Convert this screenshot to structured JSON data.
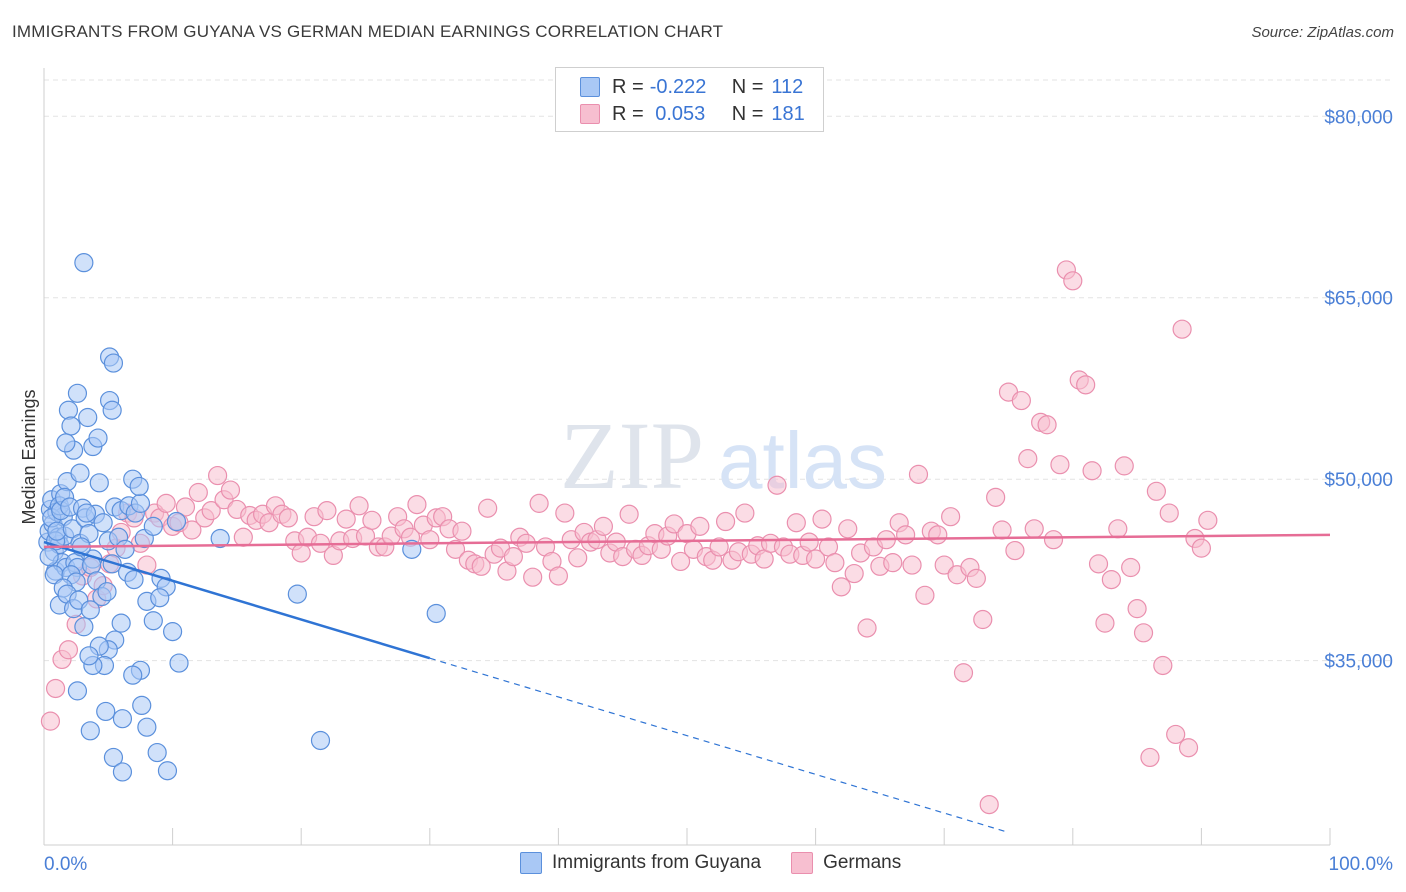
{
  "header": {
    "title": "IMMIGRANTS FROM GUYANA VS GERMAN MEDIAN EARNINGS CORRELATION CHART",
    "source": "Source: ZipAtlas.com"
  },
  "legend": {
    "rows": [
      {
        "r_label": "R =",
        "r_value": "-0.222",
        "n_label": "N =",
        "n_value": "112"
      },
      {
        "r_label": "R =",
        "r_value": " 0.053",
        "n_label": "N =",
        "n_value": "181"
      }
    ]
  },
  "watermark": {
    "zip": "ZIP",
    "atlas": "atlas"
  },
  "colors": {
    "blue_fill": "#a9c8f5",
    "blue_stroke": "#5b90dc",
    "blue_line": "#2f74d4",
    "pink_fill": "#f7bfd0",
    "pink_stroke": "#ea8fae",
    "pink_line": "#e66d96",
    "accent_text": "#4a7fd6"
  },
  "chart_data": {
    "type": "scatter",
    "title": "IMMIGRANTS FROM GUYANA VS GERMAN MEDIAN EARNINGS CORRELATION CHART",
    "xlabel": "",
    "ylabel": "Median Earnings",
    "xlim": [
      0,
      100
    ],
    "ylim": [
      21000,
      83000
    ],
    "x_tick_labels": [
      "0.0%",
      "100.0%"
    ],
    "y_ticks": [
      {
        "value": 35000,
        "label": "$35,000"
      },
      {
        "value": 50000,
        "label": "$50,000"
      },
      {
        "value": 65000,
        "label": "$65,000"
      },
      {
        "value": 80000,
        "label": "$80,000"
      }
    ],
    "series": [
      {
        "name": "Immigrants from Guyana",
        "r": -0.222,
        "n": 112,
        "trend": {
          "x0": 0,
          "y0": 44800,
          "x1": 30,
          "y1": 35200,
          "dash_to_x": 75
        },
        "points": [
          [
            0.3,
            44800
          ],
          [
            0.4,
            45700
          ],
          [
            0.5,
            47500
          ],
          [
            0.6,
            48300
          ],
          [
            0.7,
            46300
          ],
          [
            0.8,
            44000
          ],
          [
            0.9,
            42400
          ],
          [
            1.0,
            47300
          ],
          [
            1.1,
            45200
          ],
          [
            1.2,
            44600
          ],
          [
            1.3,
            48800
          ],
          [
            1.4,
            43100
          ],
          [
            1.5,
            46900
          ],
          [
            1.6,
            45300
          ],
          [
            1.7,
            42700
          ],
          [
            1.8,
            49800
          ],
          [
            0.6,
            46800
          ],
          [
            0.9,
            44900
          ],
          [
            1.2,
            47800
          ],
          [
            0.4,
            43600
          ],
          [
            0.8,
            42100
          ],
          [
            1.0,
            45700
          ],
          [
            1.3,
            47400
          ],
          [
            1.6,
            48500
          ],
          [
            2.0,
            47700
          ],
          [
            2.2,
            45900
          ],
          [
            2.4,
            43100
          ],
          [
            2.6,
            42700
          ],
          [
            2.8,
            44700
          ],
          [
            3.0,
            47600
          ],
          [
            3.2,
            46800
          ],
          [
            3.5,
            45500
          ],
          [
            3.8,
            43400
          ],
          [
            4.0,
            47100
          ],
          [
            4.3,
            49700
          ],
          [
            4.6,
            46400
          ],
          [
            5.0,
            44900
          ],
          [
            2.1,
            42100
          ],
          [
            2.5,
            41500
          ],
          [
            2.9,
            44400
          ],
          [
            3.3,
            47200
          ],
          [
            3.7,
            42900
          ],
          [
            4.1,
            41600
          ],
          [
            4.5,
            40300
          ],
          [
            4.9,
            40700
          ],
          [
            5.3,
            43000
          ],
          [
            1.2,
            39600
          ],
          [
            1.5,
            41000
          ],
          [
            1.8,
            40500
          ],
          [
            2.3,
            39300
          ],
          [
            2.7,
            40000
          ],
          [
            3.1,
            37800
          ],
          [
            3.6,
            39200
          ],
          [
            1.9,
            55700
          ],
          [
            2.1,
            54400
          ],
          [
            2.3,
            52400
          ],
          [
            2.6,
            57100
          ],
          [
            2.8,
            50500
          ],
          [
            3.4,
            55100
          ],
          [
            3.8,
            52700
          ],
          [
            4.2,
            53400
          ],
          [
            1.7,
            53000
          ],
          [
            5.1,
            56500
          ],
          [
            5.3,
            55700
          ],
          [
            5.5,
            47700
          ],
          [
            6.0,
            47400
          ],
          [
            6.6,
            47800
          ],
          [
            7.1,
            47200
          ],
          [
            7.5,
            48000
          ],
          [
            5.8,
            45200
          ],
          [
            6.3,
            44200
          ],
          [
            6.9,
            50000
          ],
          [
            7.4,
            49400
          ],
          [
            7.8,
            45100
          ],
          [
            8.5,
            46100
          ],
          [
            6.5,
            42300
          ],
          [
            7.0,
            41700
          ],
          [
            8.0,
            39900
          ],
          [
            8.5,
            38300
          ],
          [
            9.1,
            41800
          ],
          [
            9.5,
            41100
          ],
          [
            10.0,
            37400
          ],
          [
            10.5,
            34800
          ],
          [
            7.5,
            34200
          ],
          [
            8.0,
            29500
          ],
          [
            9.0,
            40200
          ],
          [
            6.0,
            38100
          ],
          [
            5.5,
            36700
          ],
          [
            5.0,
            35900
          ],
          [
            4.7,
            34600
          ],
          [
            4.3,
            36200
          ],
          [
            3.8,
            34600
          ],
          [
            3.5,
            35400
          ],
          [
            2.6,
            32500
          ],
          [
            6.9,
            33800
          ],
          [
            7.6,
            31300
          ],
          [
            4.8,
            30800
          ],
          [
            6.1,
            30200
          ],
          [
            3.6,
            29200
          ],
          [
            5.4,
            27000
          ],
          [
            6.1,
            25800
          ],
          [
            8.8,
            27400
          ],
          [
            9.6,
            25900
          ],
          [
            3.1,
            67900
          ],
          [
            5.1,
            60100
          ],
          [
            5.4,
            59600
          ],
          [
            10.3,
            46500
          ],
          [
            13.7,
            45100
          ],
          [
            19.7,
            40500
          ],
          [
            21.5,
            28400
          ],
          [
            30.5,
            38900
          ],
          [
            28.6,
            44200
          ]
        ]
      },
      {
        "name": "Germans",
        "r": 0.053,
        "n": 181,
        "trend": {
          "x0": 0,
          "y0": 44400,
          "x1": 100,
          "y1": 45400
        },
        "points": [
          [
            0.5,
            30000
          ],
          [
            0.9,
            32700
          ],
          [
            1.4,
            35100
          ],
          [
            1.9,
            35900
          ],
          [
            2.5,
            38000
          ],
          [
            3.0,
            42000
          ],
          [
            3.6,
            42700
          ],
          [
            4.1,
            40100
          ],
          [
            4.6,
            41200
          ],
          [
            5.1,
            43000
          ],
          [
            5.6,
            44300
          ],
          [
            6.0,
            45600
          ],
          [
            6.5,
            47200
          ],
          [
            7.0,
            46800
          ],
          [
            7.5,
            44700
          ],
          [
            8.0,
            42900
          ],
          [
            8.6,
            47200
          ],
          [
            9.0,
            46800
          ],
          [
            9.5,
            48000
          ],
          [
            10.0,
            46100
          ],
          [
            10.5,
            46400
          ],
          [
            11.0,
            47700
          ],
          [
            11.5,
            45800
          ],
          [
            12.0,
            48900
          ],
          [
            12.5,
            46800
          ],
          [
            13.0,
            47400
          ],
          [
            13.5,
            50300
          ],
          [
            14.0,
            48300
          ],
          [
            14.5,
            49100
          ],
          [
            15.0,
            47500
          ],
          [
            15.5,
            45200
          ],
          [
            16.0,
            47000
          ],
          [
            16.5,
            46600
          ],
          [
            17.0,
            47100
          ],
          [
            17.5,
            46400
          ],
          [
            18.0,
            47800
          ],
          [
            18.5,
            47100
          ],
          [
            19.0,
            46800
          ],
          [
            19.5,
            44900
          ],
          [
            20.0,
            43900
          ],
          [
            20.5,
            45200
          ],
          [
            21.0,
            46900
          ],
          [
            21.5,
            44700
          ],
          [
            22.0,
            47400
          ],
          [
            22.5,
            43700
          ],
          [
            23.0,
            44900
          ],
          [
            23.5,
            46700
          ],
          [
            24.0,
            45100
          ],
          [
            24.5,
            47800
          ],
          [
            25.0,
            45300
          ],
          [
            25.5,
            46600
          ],
          [
            26.0,
            44400
          ],
          [
            26.5,
            44400
          ],
          [
            27.0,
            45300
          ],
          [
            27.5,
            46900
          ],
          [
            28.0,
            45900
          ],
          [
            28.5,
            45200
          ],
          [
            29.0,
            47900
          ],
          [
            29.5,
            46200
          ],
          [
            30.0,
            45000
          ],
          [
            30.5,
            46800
          ],
          [
            31.0,
            46900
          ],
          [
            31.5,
            45900
          ],
          [
            32.0,
            44200
          ],
          [
            32.5,
            45700
          ],
          [
            33.0,
            43300
          ],
          [
            33.5,
            43000
          ],
          [
            34.0,
            42800
          ],
          [
            34.5,
            47600
          ],
          [
            35.0,
            43800
          ],
          [
            35.5,
            44300
          ],
          [
            36.0,
            42400
          ],
          [
            36.5,
            43600
          ],
          [
            37.0,
            45200
          ],
          [
            37.5,
            44700
          ],
          [
            38.0,
            41900
          ],
          [
            38.5,
            48000
          ],
          [
            39.0,
            44400
          ],
          [
            39.5,
            43200
          ],
          [
            40.0,
            42000
          ],
          [
            40.5,
            47200
          ],
          [
            41.0,
            45000
          ],
          [
            41.5,
            43500
          ],
          [
            42.0,
            45600
          ],
          [
            42.5,
            44800
          ],
          [
            43.0,
            45000
          ],
          [
            43.5,
            46100
          ],
          [
            44.0,
            43900
          ],
          [
            44.5,
            44800
          ],
          [
            45.0,
            43600
          ],
          [
            45.5,
            47100
          ],
          [
            46.0,
            44200
          ],
          [
            46.5,
            43700
          ],
          [
            47.0,
            44500
          ],
          [
            47.5,
            45500
          ],
          [
            48.0,
            44200
          ],
          [
            48.5,
            45300
          ],
          [
            49.0,
            46300
          ],
          [
            49.5,
            43200
          ],
          [
            50.0,
            45500
          ],
          [
            50.5,
            44200
          ],
          [
            51.0,
            46100
          ],
          [
            51.5,
            43600
          ],
          [
            52.0,
            43300
          ],
          [
            52.5,
            44400
          ],
          [
            53.0,
            46500
          ],
          [
            53.5,
            43300
          ],
          [
            54.0,
            44000
          ],
          [
            54.5,
            47200
          ],
          [
            55.0,
            43800
          ],
          [
            55.5,
            44500
          ],
          [
            56.0,
            43400
          ],
          [
            56.5,
            44700
          ],
          [
            57.0,
            49500
          ],
          [
            57.5,
            44400
          ],
          [
            58.0,
            43800
          ],
          [
            58.5,
            46400
          ],
          [
            59.0,
            43700
          ],
          [
            59.5,
            44800
          ],
          [
            60.0,
            43400
          ],
          [
            60.5,
            46700
          ],
          [
            61.0,
            44400
          ],
          [
            61.5,
            43100
          ],
          [
            62.0,
            41100
          ],
          [
            62.5,
            45900
          ],
          [
            63.0,
            42200
          ],
          [
            63.5,
            43900
          ],
          [
            64.0,
            37700
          ],
          [
            64.5,
            44400
          ],
          [
            65.0,
            42800
          ],
          [
            65.5,
            45000
          ],
          [
            66.0,
            43100
          ],
          [
            66.5,
            46400
          ],
          [
            67.0,
            45400
          ],
          [
            67.5,
            42900
          ],
          [
            68.0,
            50400
          ],
          [
            68.5,
            40400
          ],
          [
            69.0,
            45700
          ],
          [
            69.5,
            45400
          ],
          [
            70.0,
            42900
          ],
          [
            70.5,
            46900
          ],
          [
            71.0,
            42100
          ],
          [
            71.5,
            34000
          ],
          [
            72.0,
            42700
          ],
          [
            72.5,
            41800
          ],
          [
            73.0,
            38400
          ],
          [
            73.5,
            23100
          ],
          [
            74.0,
            48500
          ],
          [
            74.5,
            45800
          ],
          [
            75.0,
            57200
          ],
          [
            75.5,
            44100
          ],
          [
            76.0,
            56500
          ],
          [
            76.5,
            51700
          ],
          [
            77.0,
            45900
          ],
          [
            77.5,
            54700
          ],
          [
            78.0,
            54500
          ],
          [
            78.5,
            45000
          ],
          [
            79.0,
            51200
          ],
          [
            79.5,
            67300
          ],
          [
            80.0,
            66400
          ],
          [
            80.5,
            58200
          ],
          [
            81.0,
            57800
          ],
          [
            81.5,
            50700
          ],
          [
            82.0,
            43000
          ],
          [
            82.5,
            38100
          ],
          [
            83.0,
            41700
          ],
          [
            83.5,
            45900
          ],
          [
            84.0,
            51100
          ],
          [
            84.5,
            42700
          ],
          [
            85.0,
            39300
          ],
          [
            85.5,
            37300
          ],
          [
            86.0,
            27000
          ],
          [
            86.5,
            49000
          ],
          [
            87.0,
            34600
          ],
          [
            87.5,
            47200
          ],
          [
            88.0,
            28900
          ],
          [
            88.5,
            62400
          ],
          [
            89.0,
            27800
          ],
          [
            89.5,
            45100
          ],
          [
            90.0,
            44300
          ],
          [
            90.5,
            46600
          ]
        ]
      }
    ]
  }
}
